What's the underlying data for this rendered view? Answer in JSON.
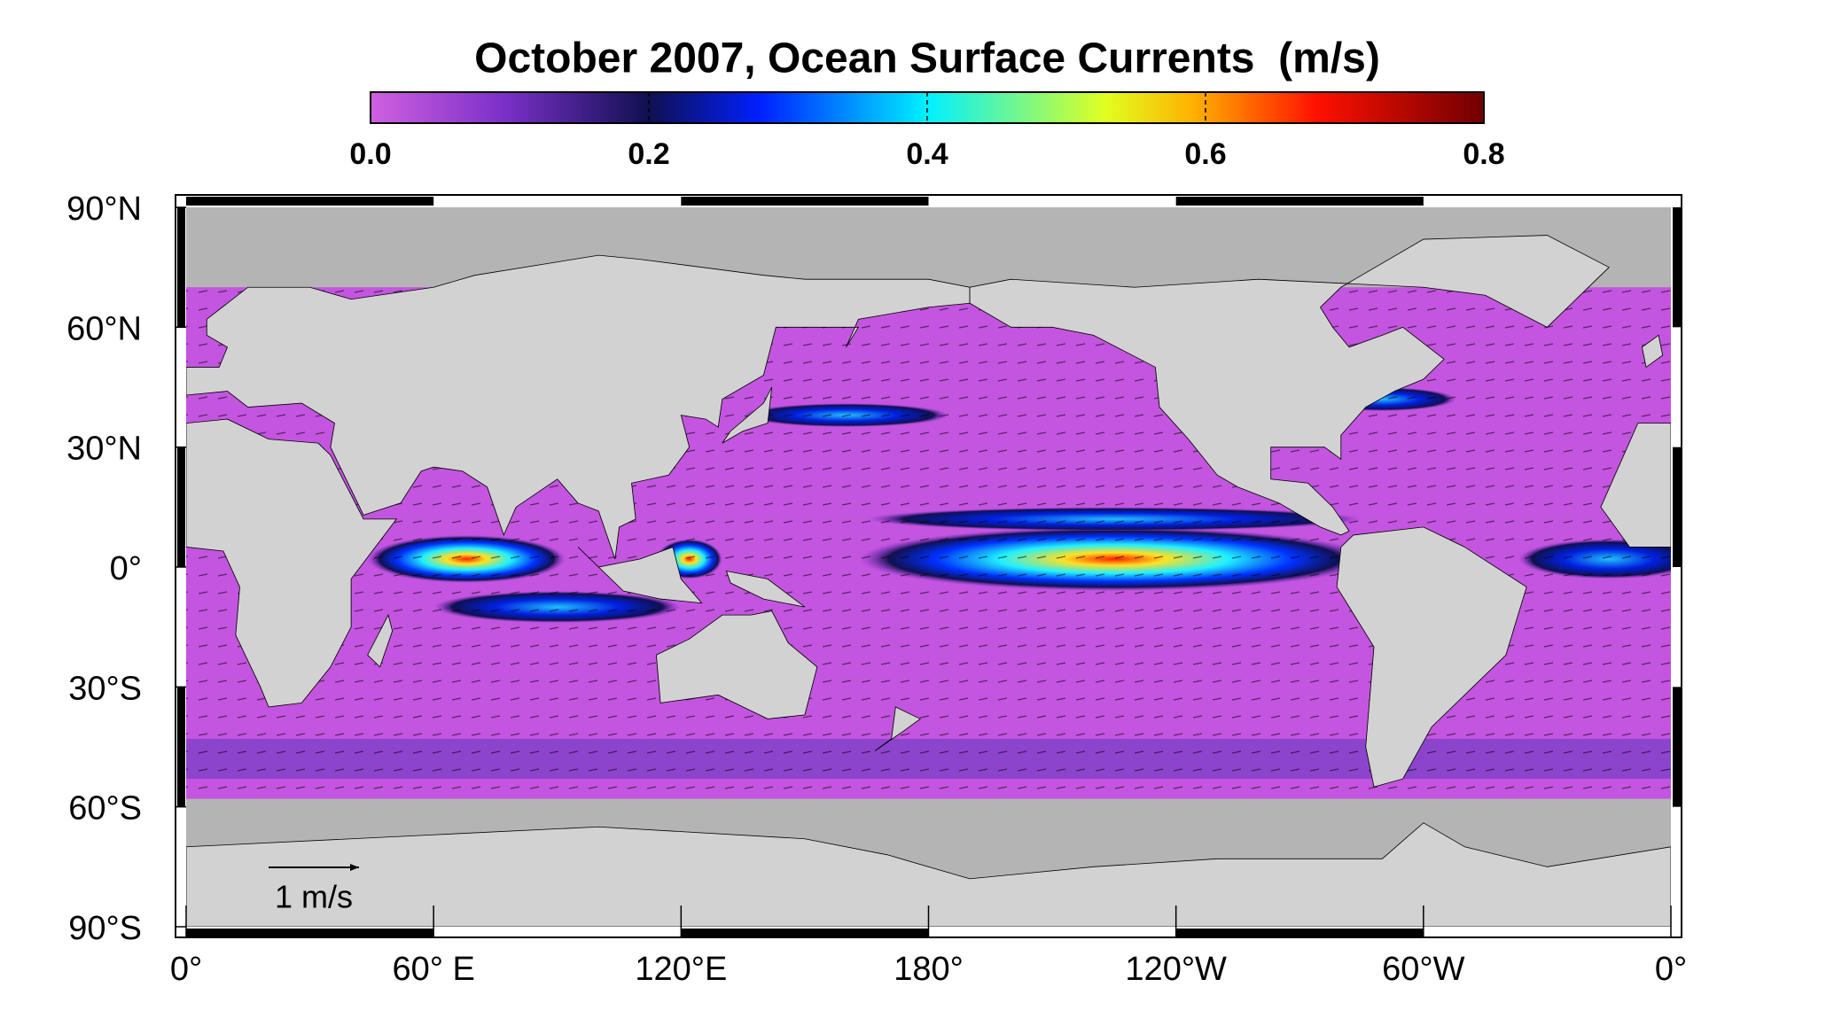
{
  "title": "October 2007, Ocean Surface Currents  (m/s)",
  "colorbar": {
    "clim": [
      0,
      0.8
    ],
    "ticks": [
      {
        "value": 0,
        "label": "0.0"
      },
      0.2,
      0.4,
      0.6,
      0.8
    ]
  },
  "map": {
    "lat_ticks": [
      {
        "value": 90,
        "label": "90°N"
      },
      {
        "value": 60,
        "label": "60°N"
      },
      {
        "value": 30,
        "label": "30°N"
      },
      {
        "value": 0,
        "label": "0°"
      },
      {
        "value": -30,
        "label": "30°S"
      },
      {
        "value": -60,
        "label": "60°S"
      },
      {
        "value": -90,
        "label": "90°S"
      }
    ],
    "lon_ticks": [
      {
        "value": 0,
        "label": "0°"
      },
      {
        "value": 60,
        "label": "60° E"
      },
      {
        "value": 120,
        "label": "120°E"
      },
      {
        "value": 180,
        "label": "180°"
      },
      {
        "value": 240,
        "label": "120°W"
      },
      {
        "value": 300,
        "label": "60°W"
      },
      {
        "value": 360,
        "label": "0°"
      }
    ],
    "reference_vector": "1 m/s"
  }
}
